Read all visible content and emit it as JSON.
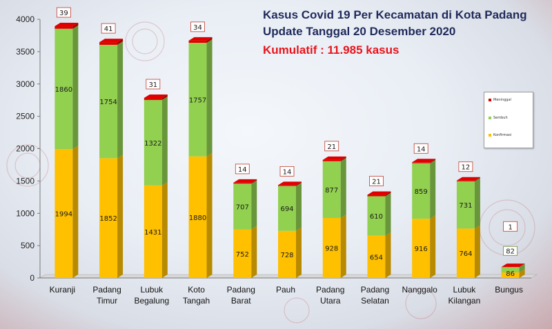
{
  "title_line1": "Kasus Covid 19 Per Kecamatan di Kota Padang",
  "title_line2": "Update Tanggal 20 Desember 2020",
  "title_line3": "Kumulatif : 11.985 kasus",
  "colors": {
    "konfirmasi": "#ffc000",
    "sembuh": "#92d050",
    "meninggal": "#e00000"
  },
  "legend": [
    {
      "key": "meninggal",
      "label": "Meninggal"
    },
    {
      "key": "sembuh",
      "label": "Sembuh"
    },
    {
      "key": "konfirmasi",
      "label": "Konfirmasi"
    }
  ],
  "chart_data": {
    "type": "bar",
    "stacked": true,
    "categories": [
      [
        "Kuranji"
      ],
      [
        "Padang",
        "Timur"
      ],
      [
        "Lubuk",
        "Begalung"
      ],
      [
        "Koto",
        "Tangah"
      ],
      [
        "Padang",
        "Barat"
      ],
      [
        "Pauh"
      ],
      [
        "Padang",
        "Utara"
      ],
      [
        "Padang",
        "Selatan"
      ],
      [
        "Nanggalo"
      ],
      [
        "Lubuk",
        "Kilangan"
      ],
      [
        "Bungus"
      ]
    ],
    "series": [
      {
        "name": "Konfirmasi",
        "key": "konfirmasi",
        "values": [
          1994,
          1852,
          1431,
          1880,
          752,
          728,
          928,
          654,
          916,
          764,
          86
        ]
      },
      {
        "name": "Sembuh",
        "key": "sembuh",
        "values": [
          1860,
          1754,
          1322,
          1757,
          707,
          694,
          877,
          610,
          859,
          731,
          82
        ]
      },
      {
        "name": "Meninggal",
        "key": "meninggal",
        "values": [
          39,
          41,
          31,
          34,
          14,
          14,
          21,
          21,
          14,
          12,
          1
        ]
      }
    ],
    "ylim": [
      0,
      4000
    ],
    "yticks": [
      0,
      500,
      1000,
      1500,
      2000,
      2500,
      3000,
      3500,
      4000
    ],
    "legend_position": "right"
  }
}
